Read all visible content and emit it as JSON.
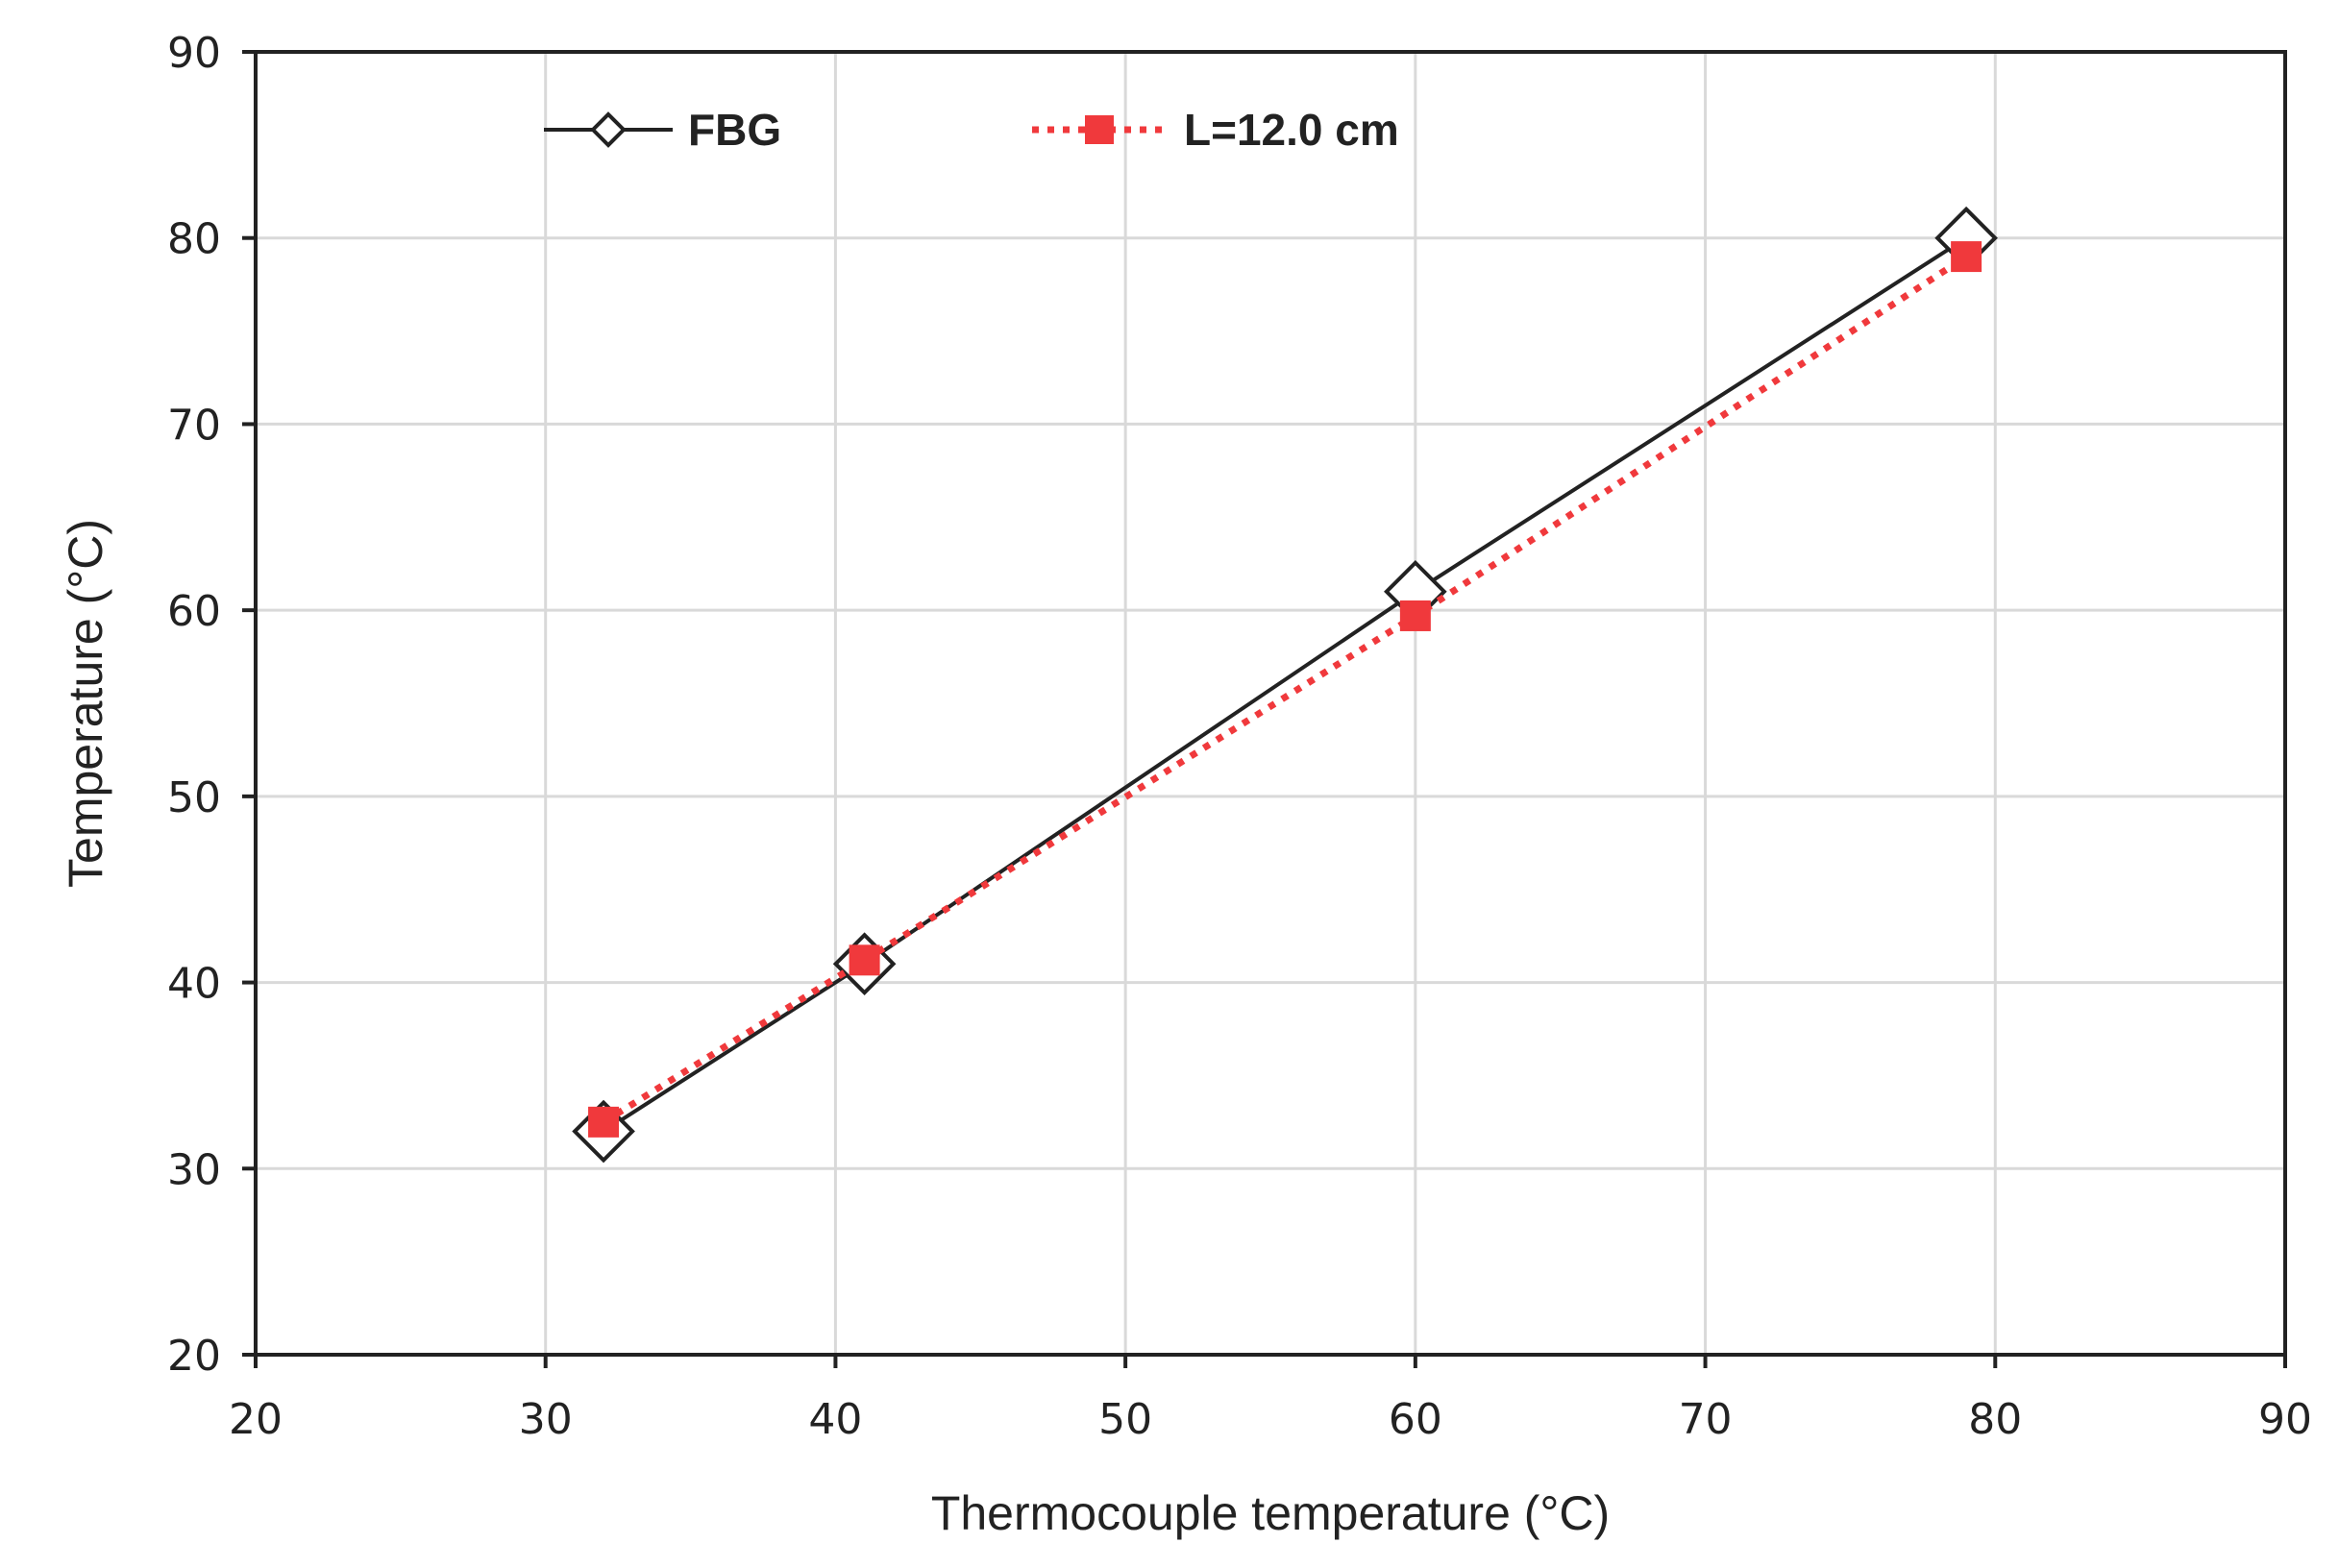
{
  "chart_data": {
    "type": "line",
    "title": "",
    "xlabel": "Thermocouple temperature (°C)",
    "ylabel": "Temperature (°C)",
    "xlim": [
      20,
      90
    ],
    "ylim": [
      20,
      90
    ],
    "xticks": [
      "20",
      "30",
      "40",
      "50",
      "60",
      "70",
      "80",
      "90"
    ],
    "yticks": [
      "20",
      "30",
      "40",
      "50",
      "60",
      "70",
      "80",
      "90"
    ],
    "grid": true,
    "legend_position": "top-left",
    "series": [
      {
        "name": "FBG",
        "color": "#222222",
        "line_style": "solid",
        "marker": "open-diamond",
        "x": [
          32,
          41,
          60,
          79
        ],
        "y": [
          32,
          41,
          61,
          80
        ]
      },
      {
        "name": "L=12.0 cm",
        "color": "#f0393c",
        "line_style": "dotted",
        "marker": "filled-square",
        "x": [
          32,
          41,
          60,
          79
        ],
        "y": [
          32.5,
          41.2,
          59.7,
          79
        ]
      }
    ]
  }
}
